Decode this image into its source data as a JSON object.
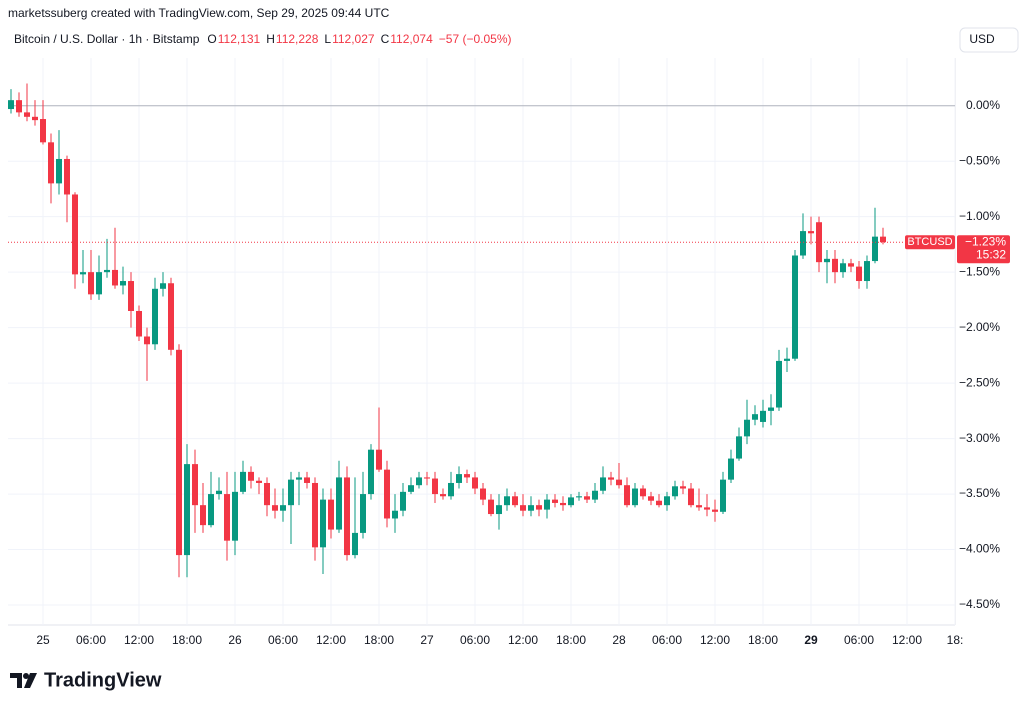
{
  "header": "marketssuberg created with TradingView.com, Sep 29, 2025 09:44 UTC",
  "symbol": "Bitcoin / U.S. Dollar · 1h · Bitstamp",
  "ohlc": [
    {
      "key": "O",
      "value": "112,131"
    },
    {
      "key": "H",
      "value": "112,228"
    },
    {
      "key": "L",
      "value": "112,027"
    },
    {
      "key": "C",
      "value": "112,074"
    }
  ],
  "change": "−57 (−0.05%)",
  "currency": "USD",
  "logo": "TradingView",
  "chart_data": {
    "type": "candlestick",
    "up_color": "#089981",
    "down_color": "#f23645",
    "xlim": [
      -0.375,
      118
    ],
    "ylim": [
      -4.68,
      0.43
    ],
    "xticks": [
      {
        "value": 4,
        "label": "25"
      },
      {
        "value": 10,
        "label": "06:00"
      },
      {
        "value": 16,
        "label": "12:00"
      },
      {
        "value": 22,
        "label": "18:00"
      },
      {
        "value": 28,
        "label": "26"
      },
      {
        "value": 34,
        "label": "06:00"
      },
      {
        "value": 40,
        "label": "12:00"
      },
      {
        "value": 46,
        "label": "18:00"
      },
      {
        "value": 52,
        "label": "27"
      },
      {
        "value": 58,
        "label": "06:00"
      },
      {
        "value": 64,
        "label": "12:00"
      },
      {
        "value": 70,
        "label": "18:00"
      },
      {
        "value": 76,
        "label": "28"
      },
      {
        "value": 82,
        "label": "06:00"
      },
      {
        "value": 88,
        "label": "12:00"
      },
      {
        "value": 94,
        "label": "18:00"
      },
      {
        "value": 100,
        "label": "29"
      },
      {
        "value": 106,
        "label": "06:00"
      },
      {
        "value": 112,
        "label": "12:00"
      },
      {
        "value": 118,
        "label": "18:"
      }
    ],
    "yticks": [
      {
        "value": 0,
        "label": "0.00%"
      },
      {
        "value": -0.5,
        "label": "−0.50%"
      },
      {
        "value": -1,
        "label": "−1.00%"
      },
      {
        "value": -1.5,
        "label": "−1.50%"
      },
      {
        "value": -2,
        "label": "−2.00%"
      },
      {
        "value": -2.5,
        "label": "−2.50%"
      },
      {
        "value": -3,
        "label": "−3.00%"
      },
      {
        "value": -3.5,
        "label": "−3.50%"
      },
      {
        "value": -4,
        "label": "−4.00%"
      },
      {
        "value": -4.5,
        "label": "−4.50%"
      }
    ],
    "grid": true,
    "baseline": 0,
    "series": [
      {
        "name": "BTCUSD",
        "open": [
          -0.03,
          0.05,
          -0.06,
          -0.1,
          -0.12,
          -0.33,
          -0.7,
          -0.48,
          -0.8,
          -1.52,
          -1.5,
          -1.7,
          -1.5,
          -1.48,
          -1.62,
          -1.58,
          -1.85,
          -2.08,
          -2.15,
          -1.65,
          -1.6,
          -2.2,
          -4.05,
          -3.23,
          -3.6,
          -3.78,
          -3.5,
          -3.5,
          -3.92,
          -3.48,
          -3.3,
          -3.38,
          -3.4,
          -3.6,
          -3.65,
          -3.6,
          -3.37,
          -3.35,
          -3.4,
          -3.98,
          -3.55,
          -3.82,
          -3.35,
          -4.05,
          -3.85,
          -3.5,
          -3.1,
          -3.28,
          -3.72,
          -3.65,
          -3.48,
          -3.42,
          -3.35,
          -3.36,
          -3.5,
          -3.52,
          -3.4,
          -3.32,
          -3.35,
          -3.45,
          -3.55,
          -3.68,
          -3.6,
          -3.52,
          -3.6,
          -3.65,
          -3.6,
          -3.64,
          -3.55,
          -3.58,
          -3.6,
          -3.53,
          -3.52,
          -3.55,
          -3.47,
          -3.35,
          -3.37,
          -3.42,
          -3.6,
          -3.45,
          -3.52,
          -3.56,
          -3.6,
          -3.52,
          -3.43,
          -3.45,
          -3.6,
          -3.62,
          -3.64,
          -3.66,
          -3.37,
          -3.18,
          -2.98,
          -2.83,
          -2.85,
          -2.75,
          -2.72,
          -2.3,
          -2.28,
          -1.35,
          -1.13,
          -1.05,
          -1.41,
          -1.38,
          -1.5,
          -1.42,
          -1.45,
          -1.58,
          -1.4,
          -1.18
        ],
        "high": [
          0.15,
          0.12,
          0.2,
          0.05,
          0.05,
          -0.25,
          -0.22,
          -0.45,
          -0.78,
          -1.3,
          -1.3,
          -1.35,
          -1.2,
          -1.1,
          -1.45,
          -1.5,
          -1.8,
          -2.0,
          -1.55,
          -1.5,
          -1.55,
          -2.15,
          -3.05,
          -3.1,
          -3.4,
          -3.3,
          -3.35,
          -3.3,
          -3.3,
          -3.2,
          -3.25,
          -3.35,
          -3.35,
          -3.45,
          -3.45,
          -3.3,
          -3.3,
          -3.3,
          -3.35,
          -3.45,
          -3.45,
          -3.2,
          -3.25,
          -3.35,
          -3.3,
          -3.05,
          -2.72,
          -3.2,
          -3.5,
          -3.4,
          -3.35,
          -3.3,
          -3.3,
          -3.3,
          -3.45,
          -3.3,
          -3.25,
          -3.28,
          -3.3,
          -3.4,
          -3.5,
          -3.5,
          -3.45,
          -3.48,
          -3.5,
          -3.52,
          -3.55,
          -3.5,
          -3.5,
          -3.52,
          -3.5,
          -3.48,
          -3.48,
          -3.4,
          -3.25,
          -3.3,
          -3.22,
          -3.35,
          -3.4,
          -3.42,
          -3.48,
          -3.5,
          -3.48,
          -3.38,
          -3.38,
          -3.4,
          -3.45,
          -3.5,
          -3.55,
          -3.3,
          -3.1,
          -2.9,
          -2.65,
          -2.7,
          -2.65,
          -2.6,
          -2.2,
          -2.18,
          -1.3,
          -0.97,
          -1.0,
          -1.0,
          -1.3,
          -1.3,
          -1.38,
          -1.38,
          -1.4,
          -1.35,
          -0.92,
          -1.1
        ],
        "low": [
          -0.07,
          -0.1,
          -0.14,
          -0.18,
          -0.35,
          -0.88,
          -0.8,
          -1.05,
          -1.65,
          -1.6,
          -1.75,
          -1.75,
          -1.55,
          -1.65,
          -1.7,
          -2.0,
          -2.12,
          -2.48,
          -2.2,
          -1.72,
          -2.25,
          -4.25,
          -4.25,
          -3.85,
          -3.85,
          -3.8,
          -3.55,
          -4.1,
          -4.05,
          -3.5,
          -3.45,
          -3.5,
          -3.7,
          -3.72,
          -3.75,
          -3.95,
          -3.6,
          -3.45,
          -4.1,
          -4.22,
          -3.9,
          -3.85,
          -4.1,
          -4.08,
          -3.9,
          -3.55,
          -3.3,
          -3.8,
          -3.85,
          -3.7,
          -3.5,
          -3.45,
          -3.42,
          -3.58,
          -3.55,
          -3.55,
          -3.45,
          -3.4,
          -3.5,
          -3.6,
          -3.7,
          -3.82,
          -3.65,
          -3.62,
          -3.7,
          -3.7,
          -3.7,
          -3.72,
          -3.62,
          -3.65,
          -3.62,
          -3.56,
          -3.58,
          -3.58,
          -3.5,
          -3.42,
          -3.45,
          -3.62,
          -3.62,
          -3.55,
          -3.6,
          -3.62,
          -3.65,
          -3.55,
          -3.5,
          -3.62,
          -3.65,
          -3.7,
          -3.75,
          -3.68,
          -3.4,
          -3.2,
          -3.05,
          -2.88,
          -2.9,
          -2.88,
          -2.75,
          -2.4,
          -2.3,
          -1.38,
          -1.25,
          -1.5,
          -1.6,
          -1.6,
          -1.55,
          -1.5,
          -1.65,
          -1.65,
          -1.42,
          -1.25
        ],
        "close": [
          0.05,
          -0.06,
          -0.1,
          -0.13,
          -0.33,
          -0.7,
          -0.48,
          -0.8,
          -1.52,
          -1.5,
          -1.7,
          -1.5,
          -1.48,
          -1.62,
          -1.58,
          -1.85,
          -2.08,
          -2.15,
          -1.65,
          -1.6,
          -2.2,
          -4.05,
          -3.23,
          -3.6,
          -3.78,
          -3.5,
          -3.47,
          -3.92,
          -3.48,
          -3.3,
          -3.38,
          -3.4,
          -3.6,
          -3.65,
          -3.6,
          -3.37,
          -3.35,
          -3.4,
          -3.98,
          -3.55,
          -3.82,
          -3.35,
          -4.05,
          -3.85,
          -3.5,
          -3.1,
          -3.28,
          -3.72,
          -3.65,
          -3.48,
          -3.42,
          -3.35,
          -3.36,
          -3.5,
          -3.52,
          -3.4,
          -3.32,
          -3.35,
          -3.45,
          -3.55,
          -3.68,
          -3.6,
          -3.52,
          -3.6,
          -3.65,
          -3.6,
          -3.64,
          -3.55,
          -3.58,
          -3.6,
          -3.53,
          -3.52,
          -3.55,
          -3.47,
          -3.35,
          -3.37,
          -3.42,
          -3.6,
          -3.45,
          -3.52,
          -3.56,
          -3.6,
          -3.52,
          -3.43,
          -3.45,
          -3.6,
          -3.62,
          -3.64,
          -3.66,
          -3.37,
          -3.18,
          -2.98,
          -2.83,
          -2.78,
          -2.75,
          -2.72,
          -2.3,
          -2.28,
          -1.35,
          -1.13,
          -1.15,
          -1.41,
          -1.38,
          -1.5,
          -1.42,
          -1.45,
          -1.58,
          -1.4,
          -1.18,
          -1.23
        ]
      }
    ],
    "last_price": {
      "value": -1.23,
      "label": "−1.23%"
    },
    "countdown": "15:32"
  }
}
